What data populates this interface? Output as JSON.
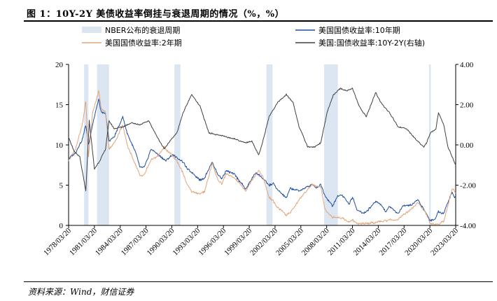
{
  "figure": {
    "title": "图 1：10Y-2Y 美债收益率倒挂与衰退周期的情况（%，%）",
    "source": "资料来源：Wind，财信证券"
  },
  "chart_data": {
    "type": "line",
    "x_range": [
      "1978/03/20",
      "2023/03/20"
    ],
    "x_tick_labels": [
      "1978/03/20",
      "1981/03/20",
      "1984/03/20",
      "1987/03/20",
      "1990/03/20",
      "1993/03/20",
      "1996/03/20",
      "1999/03/20",
      "2002/03/20",
      "2005/03/20",
      "2008/03/20",
      "2011/03/20",
      "2014/03/20",
      "2017/03/20",
      "2020/03/20",
      "2023/03/20"
    ],
    "y_left": {
      "lim": [
        0,
        20
      ],
      "ticks": [
        0,
        5,
        10,
        15,
        20
      ],
      "tick_labels": [
        "0",
        "5",
        "10",
        "15",
        "20"
      ]
    },
    "y_right": {
      "lim": [
        -4,
        4
      ],
      "ticks": [
        -4,
        -2,
        0,
        2,
        4
      ],
      "tick_labels": [
        "-4.00",
        "-2.00",
        "0.00",
        "2.00",
        "4.00"
      ]
    },
    "legend": {
      "placement": "top",
      "items": [
        {
          "label": "NBER公布的衰退周期",
          "kind": "band",
          "color": "#dce6f2"
        },
        {
          "label": "美国国债收益率:10年期",
          "kind": "line",
          "color": "#1f4e9c"
        },
        {
          "label": "美国国债收益率:2年期",
          "kind": "line",
          "color": "#e0a57a"
        },
        {
          "label": "美国:国债收益率:10Y-2Y(右轴)",
          "kind": "line",
          "color": "#404040"
        }
      ]
    },
    "recessions": [
      {
        "start": 1980.0,
        "end": 1980.5
      },
      {
        "start": 1981.5,
        "end": 1982.9
      },
      {
        "start": 1990.5,
        "end": 1991.2
      },
      {
        "start": 2001.2,
        "end": 2001.9
      },
      {
        "start": 2007.9,
        "end": 2009.5
      },
      {
        "start": 2020.1,
        "end": 2020.3
      }
    ],
    "series": [
      {
        "name": "美国国债收益率:10年期",
        "axis": "left",
        "color": "#1f4e9c",
        "points": [
          [
            1978.2,
            8.3
          ],
          [
            1979.0,
            9.0
          ],
          [
            1979.8,
            10.7
          ],
          [
            1980.2,
            12.5
          ],
          [
            1980.5,
            10.0
          ],
          [
            1981.0,
            12.6
          ],
          [
            1981.7,
            15.7
          ],
          [
            1982.0,
            14.0
          ],
          [
            1982.5,
            13.9
          ],
          [
            1982.9,
            10.5
          ],
          [
            1983.5,
            11.0
          ],
          [
            1984.5,
            13.5
          ],
          [
            1985.0,
            11.5
          ],
          [
            1986.0,
            9.0
          ],
          [
            1986.5,
            7.2
          ],
          [
            1987.0,
            7.2
          ],
          [
            1987.8,
            9.5
          ],
          [
            1988.5,
            8.9
          ],
          [
            1989.5,
            8.0
          ],
          [
            1990.3,
            8.8
          ],
          [
            1990.8,
            8.4
          ],
          [
            1991.5,
            7.9
          ],
          [
            1992.0,
            7.0
          ],
          [
            1992.5,
            6.6
          ],
          [
            1993.5,
            5.6
          ],
          [
            1994.0,
            5.9
          ],
          [
            1994.9,
            7.9
          ],
          [
            1995.5,
            6.4
          ],
          [
            1996.0,
            5.8
          ],
          [
            1996.5,
            6.8
          ],
          [
            1997.5,
            6.3
          ],
          [
            1998.8,
            4.5
          ],
          [
            1999.5,
            5.8
          ],
          [
            2000.0,
            6.6
          ],
          [
            2000.8,
            5.8
          ],
          [
            2001.5,
            5.0
          ],
          [
            2002.0,
            5.2
          ],
          [
            2002.5,
            4.4
          ],
          [
            2003.5,
            3.4
          ],
          [
            2004.0,
            4.6
          ],
          [
            2005.0,
            4.3
          ],
          [
            2006.5,
            5.1
          ],
          [
            2007.0,
            4.7
          ],
          [
            2007.5,
            5.1
          ],
          [
            2008.0,
            3.7
          ],
          [
            2008.9,
            2.4
          ],
          [
            2009.5,
            3.7
          ],
          [
            2010.0,
            3.8
          ],
          [
            2010.8,
            2.6
          ],
          [
            2011.2,
            3.5
          ],
          [
            2011.7,
            2.0
          ],
          [
            2012.5,
            1.5
          ],
          [
            2013.0,
            1.9
          ],
          [
            2013.9,
            3.0
          ],
          [
            2014.5,
            2.6
          ],
          [
            2015.1,
            1.7
          ],
          [
            2015.5,
            2.4
          ],
          [
            2016.5,
            1.4
          ],
          [
            2017.0,
            2.4
          ],
          [
            2018.0,
            2.5
          ],
          [
            2018.8,
            3.2
          ],
          [
            2019.5,
            2.0
          ],
          [
            2019.8,
            1.5
          ],
          [
            2020.2,
            0.6
          ],
          [
            2020.7,
            0.7
          ],
          [
            2021.2,
            1.7
          ],
          [
            2021.8,
            1.5
          ],
          [
            2022.3,
            2.9
          ],
          [
            2022.8,
            4.2
          ],
          [
            2023.0,
            3.5
          ],
          [
            2023.2,
            3.5
          ]
        ]
      },
      {
        "name": "美国国债收益率:2年期",
        "axis": "left",
        "color": "#e0a57a",
        "points": [
          [
            1978.2,
            8.0
          ],
          [
            1979.0,
            9.5
          ],
          [
            1979.8,
            12.5
          ],
          [
            1980.2,
            15.5
          ],
          [
            1980.5,
            8.5
          ],
          [
            1981.0,
            14.0
          ],
          [
            1981.7,
            16.7
          ],
          [
            1982.0,
            14.5
          ],
          [
            1982.5,
            14.0
          ],
          [
            1982.9,
            9.5
          ],
          [
            1983.5,
            10.2
          ],
          [
            1984.5,
            12.5
          ],
          [
            1985.0,
            10.0
          ],
          [
            1986.0,
            7.5
          ],
          [
            1986.5,
            6.2
          ],
          [
            1987.0,
            6.3
          ],
          [
            1987.8,
            8.2
          ],
          [
            1988.5,
            8.5
          ],
          [
            1989.3,
            9.7
          ],
          [
            1990.3,
            8.6
          ],
          [
            1990.8,
            8.0
          ],
          [
            1991.5,
            6.5
          ],
          [
            1992.0,
            5.0
          ],
          [
            1992.5,
            4.2
          ],
          [
            1993.5,
            3.9
          ],
          [
            1994.0,
            4.2
          ],
          [
            1994.9,
            7.7
          ],
          [
            1995.5,
            5.8
          ],
          [
            1996.0,
            5.1
          ],
          [
            1996.5,
            6.4
          ],
          [
            1997.5,
            5.9
          ],
          [
            1998.8,
            4.3
          ],
          [
            1999.5,
            5.6
          ],
          [
            2000.3,
            6.8
          ],
          [
            2000.8,
            6.0
          ],
          [
            2001.5,
            3.5
          ],
          [
            2002.0,
            3.0
          ],
          [
            2002.5,
            2.2
          ],
          [
            2003.5,
            1.3
          ],
          [
            2004.0,
            1.6
          ],
          [
            2005.0,
            3.2
          ],
          [
            2006.5,
            5.1
          ],
          [
            2007.0,
            4.8
          ],
          [
            2007.5,
            4.9
          ],
          [
            2008.0,
            2.0
          ],
          [
            2008.9,
            1.0
          ],
          [
            2009.5,
            1.0
          ],
          [
            2010.0,
            0.9
          ],
          [
            2010.8,
            0.4
          ],
          [
            2011.2,
            0.7
          ],
          [
            2011.7,
            0.2
          ],
          [
            2012.5,
            0.25
          ],
          [
            2013.0,
            0.25
          ],
          [
            2013.9,
            0.35
          ],
          [
            2014.5,
            0.5
          ],
          [
            2015.1,
            0.6
          ],
          [
            2015.5,
            0.7
          ],
          [
            2016.5,
            0.7
          ],
          [
            2017.0,
            1.2
          ],
          [
            2018.0,
            2.0
          ],
          [
            2018.8,
            2.9
          ],
          [
            2019.5,
            1.8
          ],
          [
            2019.8,
            1.5
          ],
          [
            2020.2,
            0.3
          ],
          [
            2020.7,
            0.13
          ],
          [
            2021.2,
            0.15
          ],
          [
            2021.8,
            0.5
          ],
          [
            2022.3,
            2.5
          ],
          [
            2022.8,
            4.5
          ],
          [
            2023.0,
            4.4
          ],
          [
            2023.2,
            4.0
          ]
        ]
      },
      {
        "name": "美国:国债收益率:10Y-2Y(右轴)",
        "axis": "right",
        "color": "#404040",
        "points": [
          [
            1978.2,
            0.4
          ],
          [
            1978.8,
            -0.3
          ],
          [
            1979.5,
            -0.6
          ],
          [
            1980.2,
            -2.3
          ],
          [
            1980.6,
            1.2
          ],
          [
            1981.2,
            -1.2
          ],
          [
            1981.8,
            -0.8
          ],
          [
            1982.5,
            -0.2
          ],
          [
            1982.9,
            1.2
          ],
          [
            1983.5,
            0.8
          ],
          [
            1984.5,
            0.9
          ],
          [
            1985.5,
            1.1
          ],
          [
            1986.5,
            1.0
          ],
          [
            1987.5,
            1.2
          ],
          [
            1988.5,
            0.4
          ],
          [
            1989.3,
            -0.2
          ],
          [
            1990.0,
            0.2
          ],
          [
            1990.8,
            0.6
          ],
          [
            1991.5,
            1.6
          ],
          [
            1992.5,
            2.5
          ],
          [
            1993.5,
            1.9
          ],
          [
            1994.5,
            0.6
          ],
          [
            1995.5,
            0.5
          ],
          [
            1996.5,
            0.4
          ],
          [
            1997.5,
            0.3
          ],
          [
            1998.8,
            0.1
          ],
          [
            1999.5,
            0.2
          ],
          [
            2000.3,
            -0.5
          ],
          [
            2000.8,
            0.2
          ],
          [
            2001.5,
            1.4
          ],
          [
            2002.5,
            2.1
          ],
          [
            2003.5,
            2.5
          ],
          [
            2004.3,
            2.1
          ],
          [
            2005.0,
            0.9
          ],
          [
            2006.0,
            -0.1
          ],
          [
            2006.8,
            -0.1
          ],
          [
            2007.5,
            0.1
          ],
          [
            2008.3,
            1.7
          ],
          [
            2009.0,
            2.5
          ],
          [
            2009.8,
            2.8
          ],
          [
            2010.5,
            2.7
          ],
          [
            2011.2,
            2.8
          ],
          [
            2012.0,
            1.9
          ],
          [
            2012.8,
            1.4
          ],
          [
            2013.9,
            2.6
          ],
          [
            2014.5,
            2.1
          ],
          [
            2015.5,
            1.6
          ],
          [
            2016.5,
            0.9
          ],
          [
            2017.5,
            0.8
          ],
          [
            2018.5,
            0.3
          ],
          [
            2019.5,
            -0.1
          ],
          [
            2019.8,
            0.1
          ],
          [
            2020.3,
            0.6
          ],
          [
            2020.9,
            0.8
          ],
          [
            2021.2,
            1.6
          ],
          [
            2021.8,
            1.0
          ],
          [
            2022.3,
            -0.1
          ],
          [
            2022.8,
            -0.6
          ],
          [
            2023.0,
            -0.8
          ],
          [
            2023.2,
            -1.0
          ]
        ]
      }
    ]
  }
}
